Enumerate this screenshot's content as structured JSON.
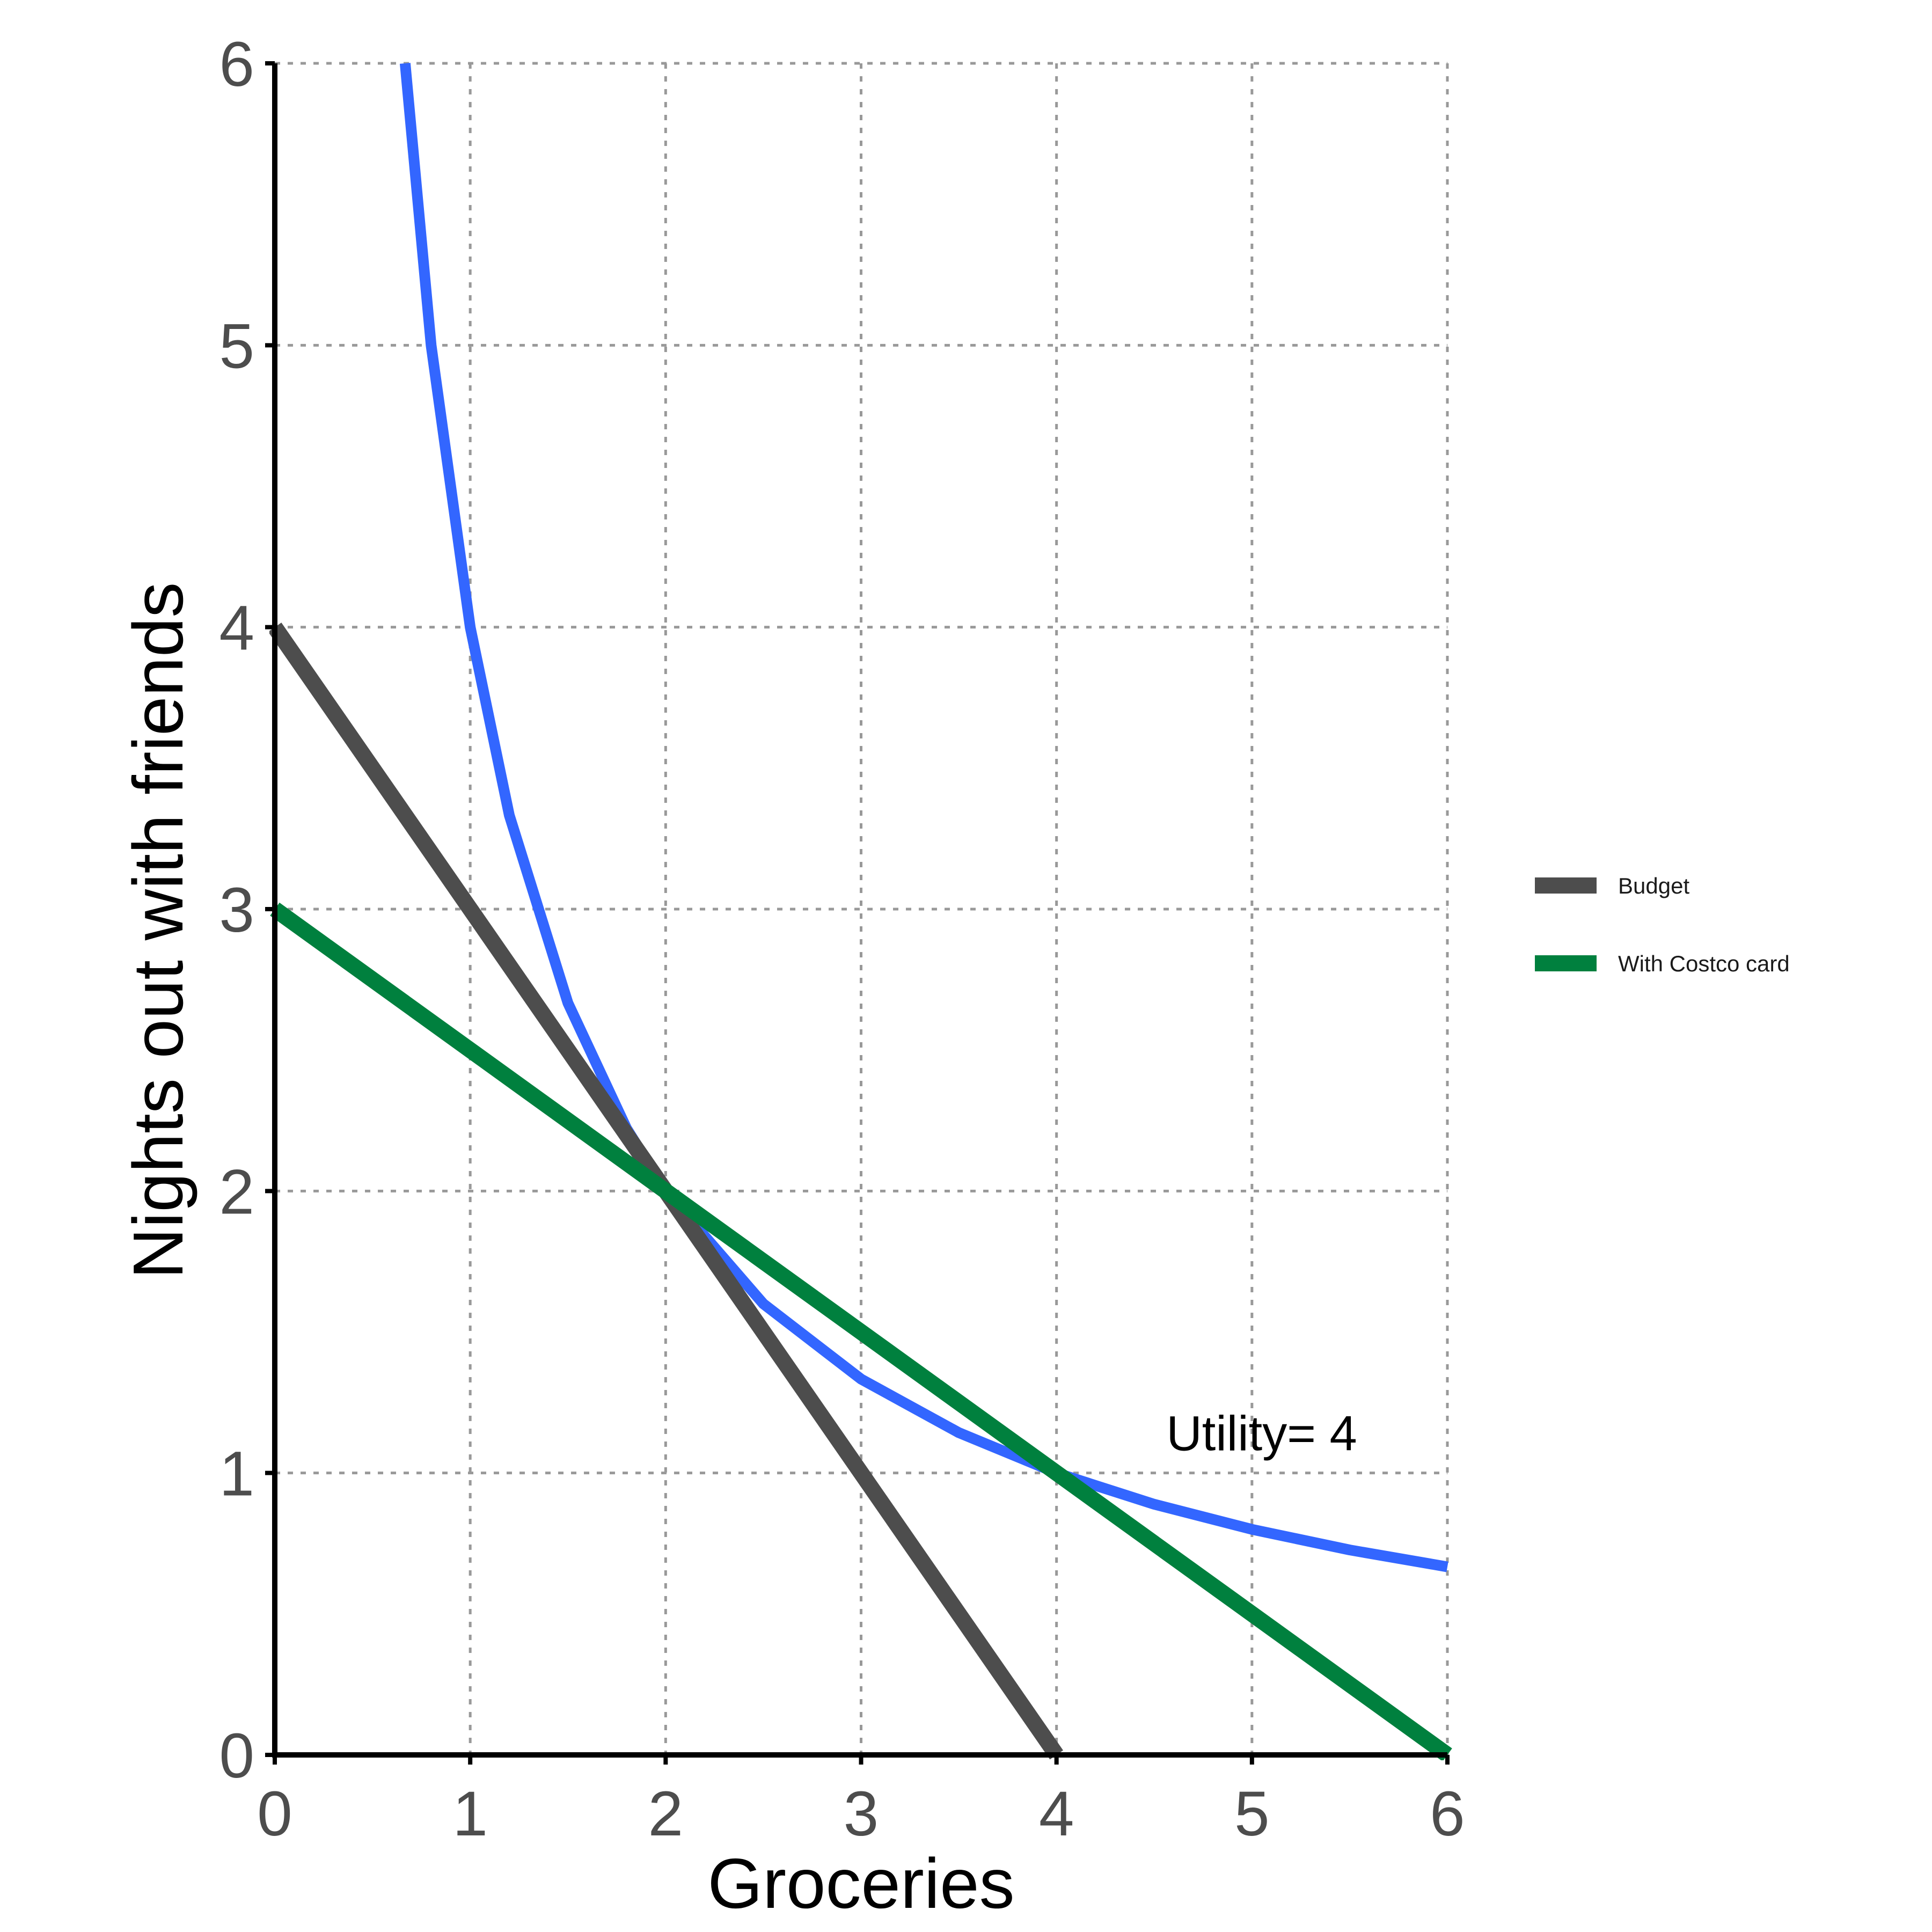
{
  "chart_data": {
    "type": "line",
    "title": "",
    "xlabel": "Groceries",
    "ylabel": "Nights out with friends",
    "xlim": [
      0,
      6
    ],
    "ylim": [
      0,
      6
    ],
    "xticks": [
      "0",
      "1",
      "2",
      "3",
      "4",
      "5",
      "6"
    ],
    "yticks": [
      "0",
      "1",
      "2",
      "3",
      "4",
      "5",
      "6"
    ],
    "grid": true,
    "legend_position": "right",
    "series": [
      {
        "name": "Budget",
        "color": "#4d4d4d",
        "in_legend": true,
        "x": [
          0,
          4
        ],
        "y": [
          4,
          0
        ]
      },
      {
        "name": "With Costco card",
        "color": "#00803e",
        "in_legend": true,
        "x": [
          0,
          6
        ],
        "y": [
          3,
          0
        ]
      },
      {
        "name": "",
        "color": "#3366ff",
        "in_legend": false,
        "x": [
          0.667,
          0.8,
          1,
          1.2,
          1.5,
          1.8,
          2,
          2.5,
          3,
          3.5,
          4,
          4.5,
          5,
          5.5,
          6
        ],
        "y": [
          6,
          5,
          4,
          3.333,
          2.667,
          2.222,
          2,
          1.6,
          1.333,
          1.143,
          1,
          0.889,
          0.8,
          0.727,
          0.667
        ]
      }
    ],
    "annotations": [
      {
        "text": "Utility= 4",
        "x": 5.05,
        "y": 1.08
      }
    ]
  }
}
